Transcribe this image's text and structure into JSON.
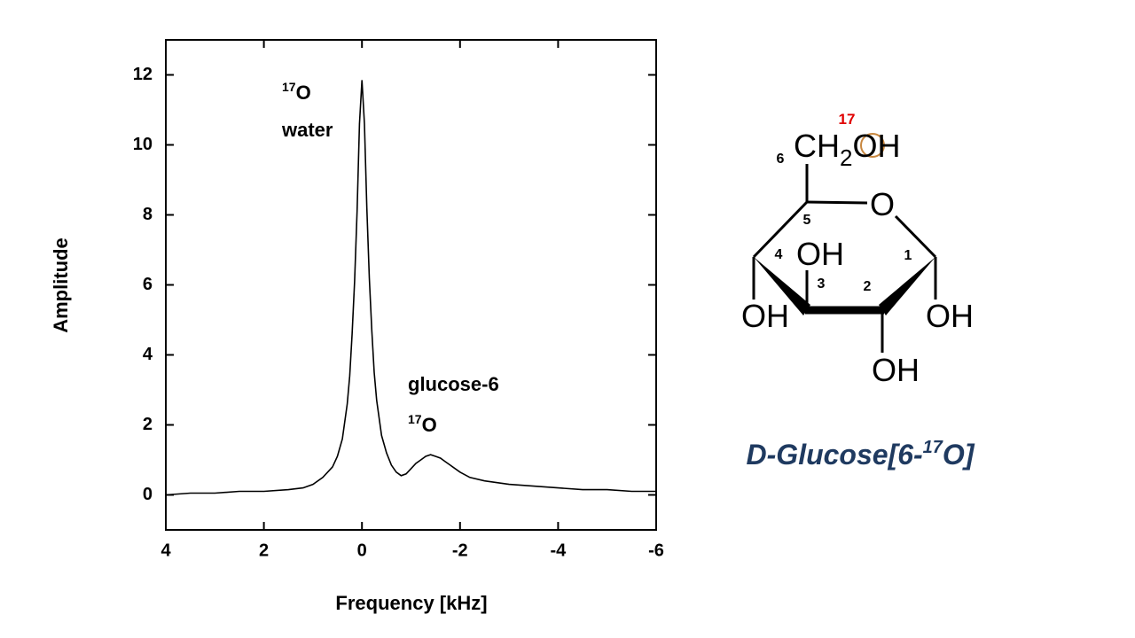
{
  "chart_data": {
    "type": "line",
    "x_label": "Frequency [kHz]",
    "y_label": "Amplitude",
    "x": [
      4,
      3.5,
      3,
      2.5,
      2,
      1.5,
      1.2,
      1.0,
      0.8,
      0.6,
      0.5,
      0.4,
      0.3,
      0.25,
      0.2,
      0.15,
      0.1,
      0.05,
      0,
      -0.05,
      -0.1,
      -0.15,
      -0.2,
      -0.25,
      -0.3,
      -0.4,
      -0.5,
      -0.6,
      -0.7,
      -0.8,
      -0.9,
      -1.0,
      -1.1,
      -1.2,
      -1.3,
      -1.4,
      -1.5,
      -1.6,
      -1.7,
      -1.8,
      -2.0,
      -2.2,
      -2.5,
      -3,
      -3.5,
      -4,
      -4.5,
      -5,
      -5.5,
      -6
    ],
    "values": [
      0.0,
      0.05,
      0.05,
      0.1,
      0.1,
      0.15,
      0.2,
      0.3,
      0.5,
      0.8,
      1.1,
      1.6,
      2.6,
      3.4,
      4.6,
      6.1,
      8.1,
      10.6,
      11.85,
      10.6,
      8.2,
      6.2,
      4.7,
      3.5,
      2.7,
      1.7,
      1.2,
      0.85,
      0.65,
      0.55,
      0.6,
      0.75,
      0.9,
      1.0,
      1.1,
      1.15,
      1.1,
      1.05,
      0.95,
      0.85,
      0.65,
      0.5,
      0.4,
      0.3,
      0.25,
      0.2,
      0.15,
      0.15,
      0.1,
      0.1
    ],
    "color": "#000000",
    "xlim": [
      4,
      -6
    ],
    "ylim": [
      -1,
      13
    ],
    "xticks": [
      4,
      2,
      0,
      -2,
      -4,
      -6
    ],
    "yticks": [
      0,
      2,
      4,
      6,
      8,
      10,
      12
    ],
    "annotations": [
      {
        "superscript": "17",
        "text": "O"
      },
      {
        "text": "water"
      },
      {
        "text": "glucose-6"
      },
      {
        "superscript": "17",
        "text": "O"
      }
    ]
  },
  "molecule": {
    "atoms": {
      "ch": "CH",
      "sub": "2",
      "oh6": "OH",
      "ring_o": "O",
      "oh4": "OH",
      "oh3": "OH",
      "oh2": "OH",
      "oh1": "OH"
    },
    "isotope": "17",
    "numbers": [
      "1",
      "2",
      "3",
      "4",
      "5",
      "6"
    ],
    "caption": {
      "text": "D-Glucose[6-",
      "superscript": "17",
      "after": "O]"
    }
  }
}
